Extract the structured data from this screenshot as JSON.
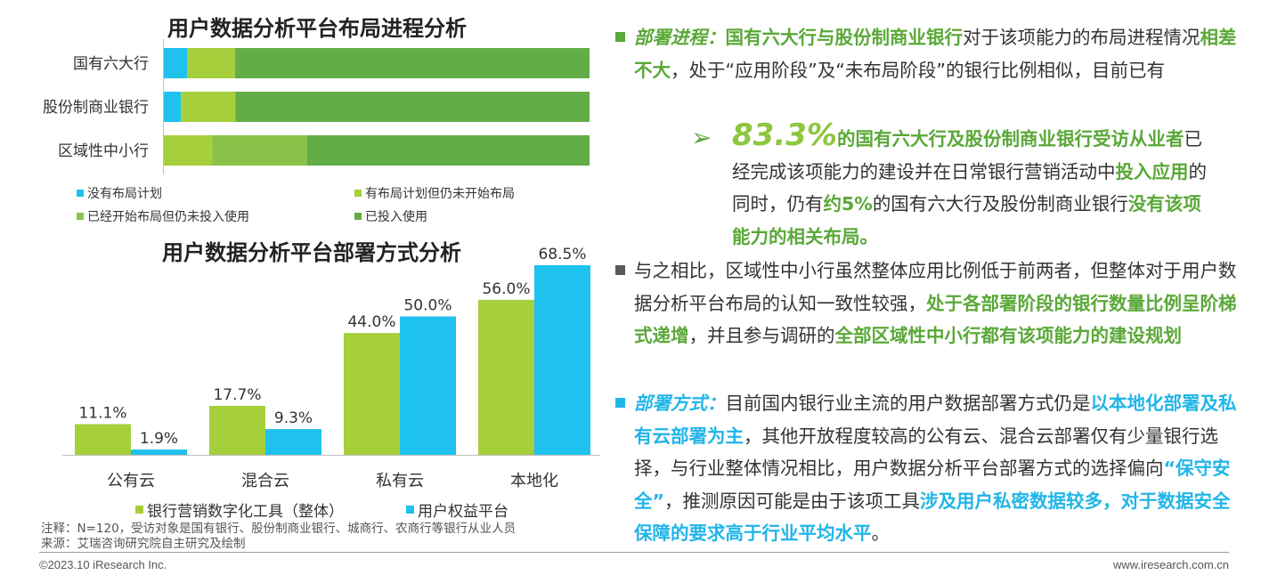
{
  "colors": {
    "blue": "#1fc1ee",
    "light_green": "#a5cf3b",
    "mid_green": "#8bc34a",
    "dark_green": "#62ad46",
    "text_green": "#5aa838",
    "text_blue": "#21b5e8",
    "bullet_grey": "#595959"
  },
  "chart_data": [
    {
      "type": "bar",
      "orientation": "horizontal",
      "stacked": true,
      "title": "用户数据分析平台布局进程分析",
      "categories": [
        "国有六大行",
        "股份制商业银行",
        "区域性中小行"
      ],
      "unit": "%",
      "xlim": [
        0,
        100
      ],
      "series": [
        {
          "name": "没有布局计划",
          "color": "#1fc1ee",
          "values": [
            5.5,
            4.0,
            0.0
          ]
        },
        {
          "name": "有布局计划但仍未开始布局",
          "color": "#a5cf3b",
          "values": [
            11.2,
            12.8,
            11.4
          ]
        },
        {
          "name": "已经开始布局但仍未投入使用",
          "color": "#8bc34a",
          "values": [
            0.0,
            0.0,
            22.2
          ]
        },
        {
          "name": "已投入使用",
          "color": "#62ad46",
          "values": [
            83.3,
            83.2,
            66.4
          ]
        }
      ],
      "legend_position": "bottom"
    },
    {
      "type": "bar",
      "orientation": "vertical",
      "title": "用户数据分析平台部署方式分析",
      "categories": [
        "公有云",
        "混合云",
        "私有云",
        "本地化"
      ],
      "unit": "%",
      "ylim": [
        0,
        68.5
      ],
      "series": [
        {
          "name": "银行营销数字化工具（整体）",
          "color": "#a5cf3b",
          "values": [
            11.1,
            17.7,
            44.0,
            56.0
          ],
          "labels": [
            "11.1%",
            "17.7%",
            "44.0%",
            "56.0%"
          ]
        },
        {
          "name": "用户权益平台",
          "color": "#1fc1ee",
          "values": [
            1.9,
            9.3,
            50.0,
            68.5
          ],
          "labels": [
            "1.9%",
            "9.3%",
            "50.0%",
            "68.5%"
          ]
        }
      ],
      "legend_position": "bottom"
    }
  ],
  "notes": {
    "note": "注释：N=120，受访对象是国有银行、股份制商业银行、城商行、农商行等银行从业人员",
    "source": "来源：艾瑞咨询研究院自主研究及绘制"
  },
  "footer": {
    "copyright": "©2023.10 iResearch Inc.",
    "website": "www.iresearch.com.cn"
  },
  "text": {
    "p1": {
      "head": "部署进程：",
      "a": "国有六大行与股份制商业银行",
      "b": "对于该项能力的布局进程情况",
      "c": "相差不大",
      "d": "，处于“应用阶段”及“未布局阶段”的银行比例相似，目前已有"
    },
    "p1_sub": {
      "num": "83.3%",
      "a": "的国有六大行及股份制商业银行受访从业者",
      "b": "已经完成该项能力的建设并在日常银行营销活动中",
      "c": "投入应用",
      "d": "的同时，仍有",
      "e": "约5%",
      "f": "的国有六大行及股份制商业银行",
      "g": "没有该项能力的相关布局。"
    },
    "p2": {
      "a": "与之相比，区域性中小行虽然整体应用比例低于前两者，但整体对于用户数据分析平台布局的认知一致性较强，",
      "b": "处于各部署阶段的银行数量比例呈阶梯式递增",
      "c": "，并且参与调研的",
      "d": "全部区域性中小行都有该项能力的建设规划"
    },
    "p3": {
      "head": "部署方式：",
      "a": "目前国内银行业主流的用户数据部署方式仍是",
      "b": "以本地化部署及私有云部署为主",
      "c": "，其他开放程度较高的公有云、混合云部署仅有少量银行选择，与行业整体情况相比，用户数据分析平台部署方式的选择偏向",
      "d": "“保守安全”",
      "e": "，推测原因可能是由于该项工具",
      "f": "涉及用户私密数据较多，对于数据安全保障的要求高于行业平均水平",
      "g": "。"
    }
  }
}
